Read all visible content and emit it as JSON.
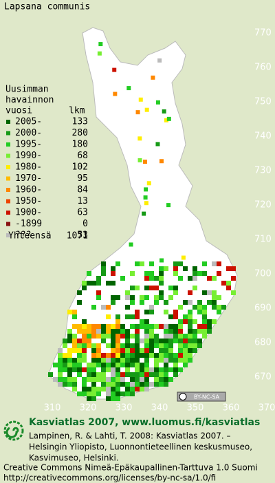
{
  "title": "Lapsana communis",
  "legend": {
    "heading": [
      "Uusimman",
      "havainnon",
      "vuosi"
    ],
    "count_heading": "lkm",
    "rows": [
      {
        "label": "2005-",
        "count": 133,
        "color": "#006400"
      },
      {
        "label": "2000-",
        "count": 280,
        "color": "#169a16"
      },
      {
        "label": "1995-",
        "count": 180,
        "color": "#22cc22"
      },
      {
        "label": "1990-",
        "count": 68,
        "color": "#77ee33"
      },
      {
        "label": "1980-",
        "count": 102,
        "color": "#ffee00"
      },
      {
        "label": "1970-",
        "count": 95,
        "color": "#ffbb00"
      },
      {
        "label": "1960-",
        "count": 84,
        "color": "#ff8800"
      },
      {
        "label": "1950-",
        "count": 13,
        "color": "#ee4400"
      },
      {
        "label": "1900-",
        "count": 63,
        "color": "#cc1100"
      },
      {
        "label": "-1899",
        "count": 0,
        "color": "#881111"
      },
      {
        "label": "???",
        "count": 53,
        "color": "#bbbbbb"
      }
    ],
    "total_label": "Yhteensä",
    "total": 1071
  },
  "axes": {
    "y_labels": [
      770,
      760,
      750,
      740,
      730,
      720,
      710,
      700,
      690,
      680,
      670
    ],
    "x_labels": [
      310,
      320,
      330,
      340,
      350,
      360,
      370
    ]
  },
  "badge": "BY-NC-SA",
  "footer": {
    "headline": "Kasviatlas 2007, www.luomus.fi/kasviatlas",
    "citation": [
      "Lampinen, R. & Lahti, T. 2008: Kasviatlas 2007. –",
      "Helsingin Yliopisto, Luonnontieteellinen keskusmuseo,",
      "Kasvimuseo, Helsinki."
    ],
    "license": [
      "Creative Commons Nimeä-Epäkaupallinen-Tarttuva 1.0 Suomi",
      "http://creativecommons.org/licenses/by-nc-sa/1.0/fi"
    ]
  }
}
